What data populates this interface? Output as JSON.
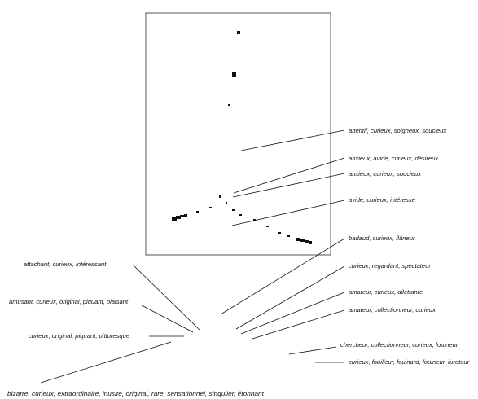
{
  "labels": {
    "attentif": "attentif, curieux, soigneux, soucieux",
    "anxieux_avide": "anxieux, avide, curieux, désireux",
    "anxieux_soucieux": "anxieux, curieux, soucieux",
    "avide_interesse": "avide, curieux, intéressé",
    "badaud": "badaud, curieux, flâneur",
    "attachant": "attachant, curieux, intéressant",
    "regardant": "curieux, regardant, spectateur",
    "amusant": "amusant, curieux, original, piquant, plaisant",
    "dilettante": "amateur, curieux, dilettante",
    "collectionneur": "amateur, collectionneur, curieux",
    "pittoresque": "curieux, original, piquant, pittoresque",
    "chercheur": "chercheur, collectionneur, curieux, fouineur",
    "fouilleur": "curieux, fouilleur, fouinard, fouineur, fureteur",
    "bizarre": "bizarre, curieux, extraordinaire, inusité, original, rare, sensationnel, singulier, étonnant"
  },
  "colors": {
    "ink": "#111111",
    "frame": "#555555",
    "background": "#ffffff"
  }
}
